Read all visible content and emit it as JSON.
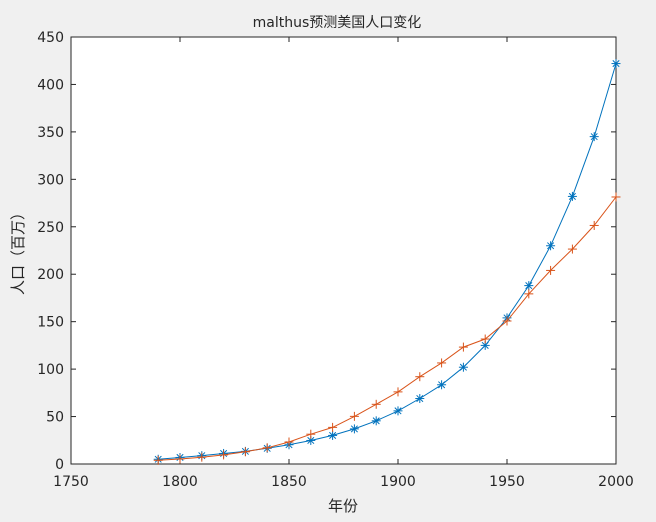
{
  "chart_data": {
    "type": "line",
    "title": "malthus预测美国人口变化",
    "xlabel": "年份",
    "ylabel": "人口（百万）",
    "xlim": [
      1750,
      2000
    ],
    "ylim": [
      0,
      450
    ],
    "xticks": [
      1750,
      1800,
      1850,
      1900,
      1950,
      2000
    ],
    "yticks": [
      0,
      50,
      100,
      150,
      200,
      250,
      300,
      350,
      400,
      450
    ],
    "grid": false,
    "x": [
      1790,
      1800,
      1810,
      1820,
      1830,
      1840,
      1850,
      1860,
      1870,
      1880,
      1890,
      1900,
      1910,
      1920,
      1930,
      1940,
      1950,
      1960,
      1970,
      1980,
      1990,
      2000
    ],
    "series": [
      {
        "marker": "asterisk",
        "color": "#0072bd",
        "values": [
          5.0,
          6.9,
          8.8,
          11.1,
          13.3,
          16.5,
          20.3,
          24.8,
          30.1,
          37.0,
          45.5,
          56.0,
          69.0,
          83.5,
          102.0,
          125.0,
          154.0,
          188.0,
          230.0,
          282.0,
          345.0,
          422.0
        ]
      },
      {
        "marker": "plus",
        "color": "#d95319",
        "values": [
          3.9,
          5.3,
          7.2,
          9.6,
          12.9,
          17.1,
          23.2,
          31.4,
          38.6,
          50.2,
          62.9,
          76.0,
          92.0,
          106.5,
          123.2,
          131.7,
          150.7,
          179.3,
          204.0,
          226.5,
          251.4,
          281.4
        ]
      }
    ]
  }
}
